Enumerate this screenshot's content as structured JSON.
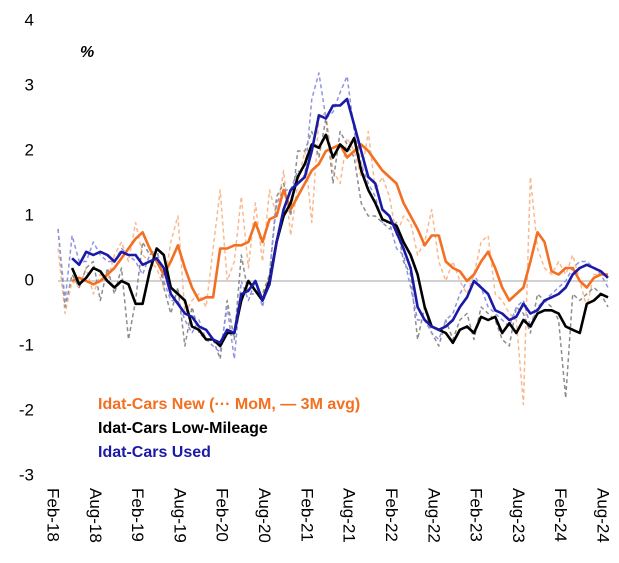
{
  "chart_data": {
    "type": "line",
    "annotations": [
      "%"
    ],
    "categories": [
      "Feb-18",
      null,
      null,
      null,
      null,
      null,
      "Aug-18",
      null,
      null,
      null,
      null,
      null,
      "Feb-19",
      null,
      null,
      null,
      null,
      null,
      "Aug-19",
      null,
      null,
      null,
      null,
      null,
      "Feb-20",
      null,
      null,
      null,
      null,
      null,
      "Aug-20",
      null,
      null,
      null,
      null,
      null,
      "Feb-21",
      null,
      null,
      null,
      null,
      null,
      "Aug-21",
      null,
      null,
      null,
      null,
      null,
      "Feb-22",
      null,
      null,
      null,
      null,
      null,
      "Aug-22",
      null,
      null,
      null,
      null,
      null,
      "Feb-23",
      null,
      null,
      null,
      null,
      null,
      "Aug-23",
      null,
      null,
      null,
      null,
      null,
      "Feb-24",
      null,
      null,
      null,
      null,
      null,
      "Aug-24"
    ],
    "ylim": [
      -3,
      4
    ],
    "yticks": [
      -3,
      -2,
      -1,
      0,
      1,
      2,
      3,
      4
    ],
    "series": [
      {
        "color": "#f9b98f",
        "dashed": true,
        "values": [
          0.5,
          -0.5,
          0.0,
          -0.1,
          0.2,
          -0.2,
          0.1,
          0.0,
          0.4,
          0.6,
          0.3,
          0.9,
          0.4,
          0.3,
          0.2,
          -0.1,
          0.6,
          1.0,
          -0.5,
          -0.3,
          -0.2,
          -0.4,
          0.5,
          1.4,
          0.0,
          0.3,
          1.3,
          0.2,
          1.2,
          0.3,
          1.4,
          1.0,
          1.7,
          0.7,
          1.5,
          2.0,
          0.9,
          2.5,
          2.6,
          1.7,
          1.5,
          2.2,
          2.0,
          1.6,
          2.3,
          1.4,
          1.6,
          1.3,
          0.7,
          1.0,
          0.9,
          0.4,
          0.6,
          1.1,
          0.3,
          0.0,
          0.3,
          0.0,
          -0.2,
          0.1,
          0.6,
          0.7,
          -0.2,
          -0.3,
          -0.5,
          -0.6,
          -1.9,
          1.6,
          0.5,
          0.2,
          0.1,
          0.3,
          0.1,
          0.4,
          0.0,
          -0.4,
          0.1,
          0.1,
          0.1
        ]
      },
      {
        "color": "#8c8c8c",
        "dashed": true,
        "values": [
          0.8,
          -0.4,
          0.1,
          -0.1,
          0.2,
          0.3,
          -0.3,
          0.2,
          -0.2,
          0.2,
          -0.9,
          -0.3,
          0.6,
          0.4,
          0.5,
          -0.1,
          -0.5,
          -0.1,
          -1.0,
          -0.4,
          -0.8,
          -0.9,
          -0.9,
          -1.2,
          -0.3,
          -0.9,
          0.4,
          -0.2,
          -0.2,
          -0.2,
          0.1,
          1.3,
          1.5,
          1.0,
          2.0,
          2.0,
          2.3,
          1.9,
          2.5,
          1.5,
          2.3,
          2.1,
          1.9,
          1.2,
          1.0,
          1.0,
          0.9,
          0.8,
          0.9,
          0.3,
          0.1,
          -0.9,
          -0.4,
          -0.8,
          -1.0,
          -0.6,
          -0.9,
          -0.6,
          -0.5,
          -0.9,
          -0.4,
          -0.5,
          -0.6,
          -0.9,
          -1.0,
          -0.4,
          -0.5,
          -0.8,
          -0.2,
          -0.3,
          -0.4,
          -0.6,
          -1.8,
          -0.2,
          -0.3,
          -0.2,
          -0.1,
          -0.2,
          -0.4
        ]
      },
      {
        "color": "#8f93e3",
        "dashed": true,
        "values": [
          0.8,
          -0.3,
          0.7,
          0.3,
          0.3,
          0.6,
          0.4,
          0.3,
          0.3,
          0.5,
          0.4,
          0.3,
          0.1,
          0.4,
          0.5,
          0.0,
          -0.3,
          -0.3,
          -0.6,
          -0.8,
          -0.6,
          -0.9,
          -1.0,
          -1.1,
          -0.4,
          -1.2,
          0.0,
          -0.3,
          0.0,
          -0.4,
          0.1,
          1.2,
          1.4,
          1.4,
          1.7,
          1.6,
          2.8,
          3.2,
          2.5,
          2.6,
          2.9,
          3.15,
          2.3,
          1.8,
          1.5,
          1.3,
          0.9,
          0.9,
          0.5,
          0.4,
          -0.1,
          -0.6,
          -0.6,
          -0.8,
          -0.9,
          -0.6,
          -0.5,
          -0.2,
          0.0,
          0.1,
          -0.1,
          -0.4,
          -0.5,
          -0.6,
          -0.7,
          -0.4,
          -0.3,
          -0.7,
          -0.4,
          -0.3,
          -0.2,
          -0.1,
          0.0,
          0.2,
          0.3,
          0.3,
          0.2,
          0.1,
          -0.1
        ]
      },
      {
        "name": "Idat-Cars New (··· MoM, — 3M avg)",
        "color": "#f36f21",
        "dashed": false,
        "values": [
          null,
          null,
          0.0,
          0.05,
          0.0,
          -0.05,
          0.0,
          0.1,
          0.2,
          0.35,
          0.5,
          0.65,
          0.75,
          0.5,
          0.3,
          0.1,
          0.3,
          0.55,
          0.2,
          -0.1,
          -0.3,
          -0.25,
          -0.25,
          0.5,
          0.5,
          0.55,
          0.55,
          0.6,
          0.9,
          0.6,
          0.95,
          1.0,
          1.4,
          1.1,
          1.3,
          1.5,
          1.7,
          1.8,
          2.0,
          2.05,
          2.1,
          1.9,
          2.0,
          2.1,
          2.0,
          1.85,
          1.7,
          1.6,
          1.5,
          1.2,
          1.0,
          0.8,
          0.55,
          0.7,
          0.7,
          0.3,
          0.2,
          0.15,
          0.0,
          0.1,
          0.3,
          0.45,
          0.2,
          -0.1,
          -0.3,
          -0.2,
          -0.1,
          0.3,
          0.75,
          0.6,
          0.15,
          0.1,
          0.2,
          0.2,
          0.0,
          -0.1,
          0.05,
          0.1,
          0.1
        ]
      },
      {
        "name": "Idat-Cars Low-Mileage",
        "color": "#000000",
        "dashed": false,
        "values": [
          null,
          null,
          0.2,
          -0.05,
          0.05,
          0.2,
          0.15,
          0.0,
          -0.1,
          0.0,
          -0.05,
          -0.35,
          -0.35,
          0.15,
          0.5,
          0.4,
          -0.1,
          -0.2,
          -0.3,
          -0.7,
          -0.75,
          -0.9,
          -0.9,
          -1.0,
          -0.8,
          -0.8,
          -0.3,
          0.0,
          -0.15,
          -0.3,
          0.0,
          0.6,
          1.0,
          1.2,
          1.6,
          1.8,
          2.1,
          2.05,
          2.25,
          1.9,
          2.1,
          2.0,
          2.2,
          1.7,
          1.4,
          1.2,
          0.95,
          0.9,
          0.85,
          0.6,
          0.4,
          0.1,
          -0.4,
          -0.7,
          -0.75,
          -0.8,
          -0.95,
          -0.75,
          -0.7,
          -0.8,
          -0.55,
          -0.6,
          -0.55,
          -0.8,
          -0.65,
          -0.8,
          -0.6,
          -0.7,
          -0.5,
          -0.45,
          -0.45,
          -0.5,
          -0.7,
          -0.75,
          -0.8,
          -0.35,
          -0.3,
          -0.2,
          -0.25
        ]
      },
      {
        "name": "Idat-Cars Used",
        "color": "#1a1aa6",
        "dashed": false,
        "values": [
          null,
          null,
          0.35,
          0.25,
          0.45,
          0.4,
          0.45,
          0.4,
          0.3,
          0.45,
          0.4,
          0.4,
          0.25,
          0.3,
          0.35,
          0.2,
          -0.2,
          -0.35,
          -0.5,
          -0.55,
          -0.7,
          -0.75,
          -0.9,
          -0.95,
          -0.75,
          -0.8,
          -0.2,
          -0.15,
          0.0,
          -0.3,
          -0.05,
          0.6,
          1.1,
          1.4,
          1.5,
          1.6,
          2.0,
          2.55,
          2.5,
          2.7,
          2.7,
          2.8,
          2.4,
          2.0,
          1.6,
          1.5,
          1.1,
          1.0,
          0.75,
          0.5,
          0.2,
          -0.4,
          -0.6,
          -0.7,
          -0.75,
          -0.7,
          -0.6,
          -0.4,
          -0.25,
          0.0,
          -0.1,
          -0.2,
          -0.45,
          -0.5,
          -0.6,
          -0.55,
          -0.35,
          -0.5,
          -0.45,
          -0.3,
          -0.25,
          -0.2,
          -0.1,
          0.1,
          0.2,
          0.25,
          0.2,
          0.15,
          0.05
        ]
      }
    ]
  }
}
